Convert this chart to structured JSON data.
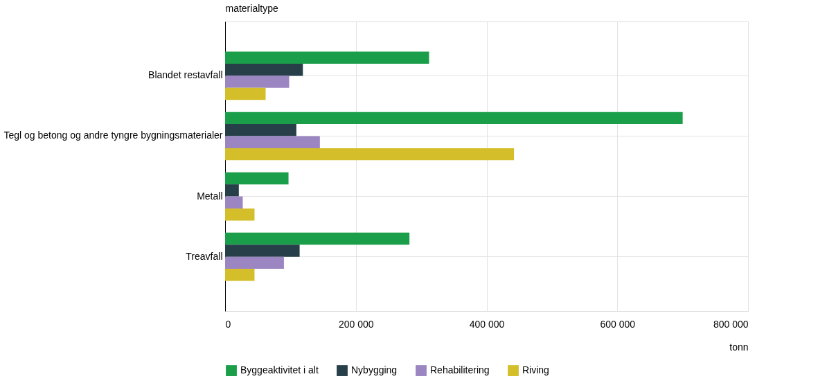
{
  "chart_data": {
    "type": "bar",
    "orientation": "horizontal",
    "ylabel": "materialtype",
    "xlabel": "tonn",
    "categories": [
      "Blandet restavfall",
      "Tegl og betong og andre tyngre bygningsmaterialer",
      "Metall",
      "Treavfall"
    ],
    "series": [
      {
        "name": "Byggeaktivitet i alt",
        "color": "#1a9e4a",
        "values": [
          312000,
          700000,
          97000,
          282000
        ]
      },
      {
        "name": "Nybygging",
        "color": "#263f48",
        "values": [
          119000,
          109000,
          21000,
          114000
        ]
      },
      {
        "name": "Rehabilitering",
        "color": "#9b86c2",
        "values": [
          98000,
          145000,
          27000,
          90000
        ]
      },
      {
        "name": "Riving",
        "color": "#d4bf2a",
        "values": [
          62000,
          442000,
          45000,
          45000
        ]
      }
    ],
    "xlim": [
      0,
      800000
    ],
    "xticks": [
      0,
      {
        "value": 200000,
        "label": "200 000"
      },
      {
        "value": 400000,
        "label": "400 000"
      },
      {
        "value": 600000,
        "label": "600 000"
      },
      {
        "value": 800000,
        "label": "800 000"
      }
    ],
    "grid": true,
    "legend": "bottom"
  }
}
